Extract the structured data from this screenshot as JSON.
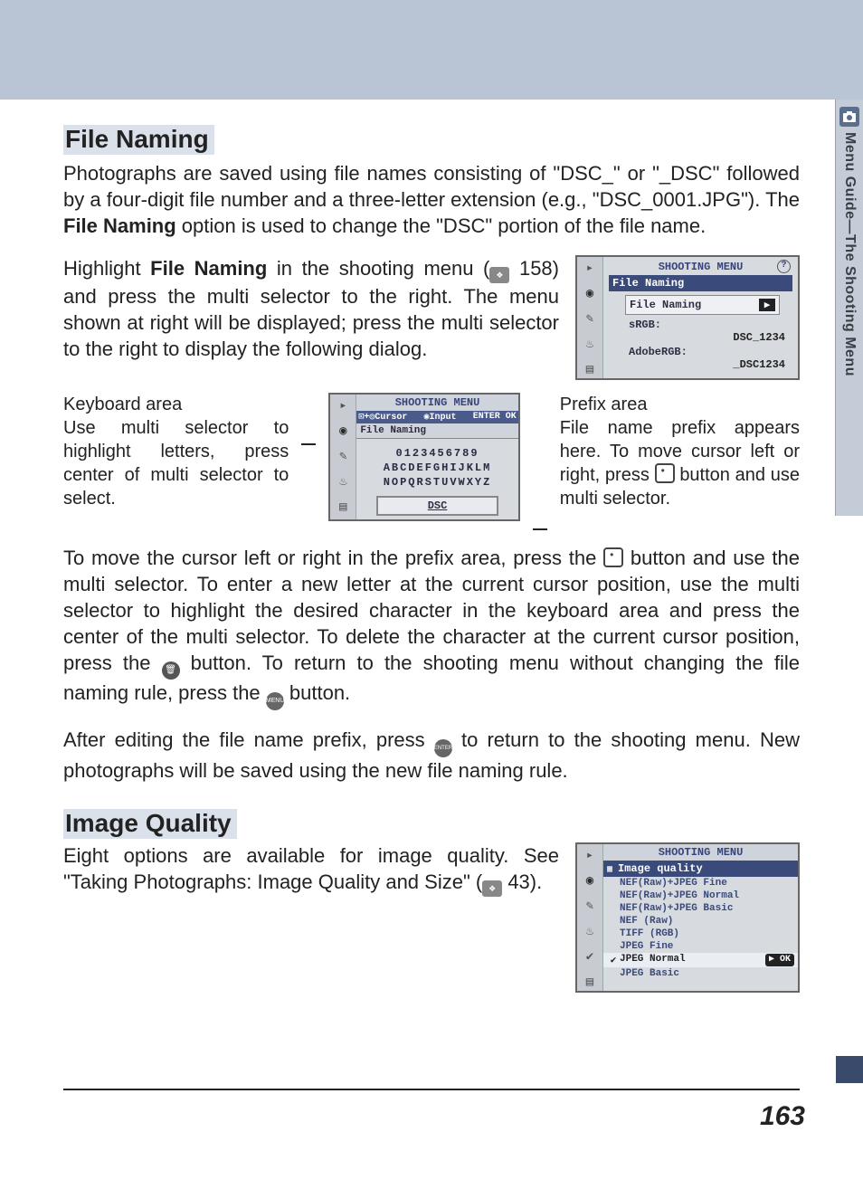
{
  "sideTab": "Menu Guide—The Shooting Menu",
  "section1": {
    "title": "File Naming",
    "intro": "Photographs are saved using file names consisting of \"DSC_\" or \"_DSC\" followed by a four-digit file number and a three-letter extension (e.g., \"DSC_0001.JPG\").  The ",
    "introBold": "File Naming",
    "intro2": " option is used to change the \"DSC\" portion of the file name.",
    "para2a": "Highlight ",
    "para2Bold": "File Naming",
    "para2b": " in the shooting menu (",
    "para2c": " 158) and press the multi selector to the right.  The menu shown at right will be displayed; press the multi selector to the right to display the following dialog.",
    "screen1": {
      "title": "SHOOTING MENU",
      "bar": "File Naming",
      "rowLabel": "File Naming",
      "srgbLabel": "sRGB:",
      "srgbVal": "DSC_1234",
      "adobeLabel": "AdobeRGB:",
      "adobeVal": "_DSC1234"
    },
    "kbLabelTitle": "Keyboard area",
    "kbLabelBody": "Use multi selector to highlight letters, press center of multi selector to select.",
    "prefixLabelTitle": "Prefix area",
    "prefixLabelBody": "File name prefix appears here.  To move cursor left or right, press ",
    "prefixLabelBody2": " button and use multi selector.",
    "kbScreen": {
      "title": "SHOOTING MENU",
      "hintLeft": "⊡+◎Cursor",
      "hintMid": "◉Input",
      "hintRight": "ENTER OK",
      "bar": "File Naming",
      "row1": "0123456789",
      "row2": "ABCDEFGHIJKLM",
      "row3": "NOPQRSTUVWXYZ",
      "prefix": "DSC"
    },
    "para3a": "To move the cursor left or right in the prefix area, press the ",
    "para3b": " button and use the multi selector.  To enter a new letter at the current cursor position, use the multi selector to highlight the desired character in the keyboard area and press the center of the multi selector.  To delete the character at the current cursor position, press the ",
    "para3c": " button.  To return to the shooting menu without changing the file naming rule, press the ",
    "para3d": " button.",
    "para4a": "After editing the file name prefix, press ",
    "para4b": " to return to the shooting menu.  New photographs will be saved using the new file naming rule."
  },
  "section2": {
    "title": "Image Quality",
    "para": "Eight options are available for image quality.  See \"Taking Photographs: Image Quality and Size\" (",
    "paraRef": " 43).",
    "screen": {
      "title": "SHOOTING MENU",
      "bar": "Image quality",
      "items": [
        "NEF(Raw)+JPEG Fine",
        "NEF(Raw)+JPEG Normal",
        "NEF(Raw)+JPEG Basic",
        "NEF  (Raw)",
        "TIFF (RGB)",
        "JPEG Fine",
        "JPEG Normal",
        "JPEG Basic"
      ],
      "selectedIndex": 6,
      "ok": "▶ OK"
    }
  },
  "pageNumber": "163",
  "icons": {
    "ref": "📖",
    "thumb": "⊡",
    "trash": "🗑",
    "menu": "MENU",
    "enter": "ENTER"
  }
}
